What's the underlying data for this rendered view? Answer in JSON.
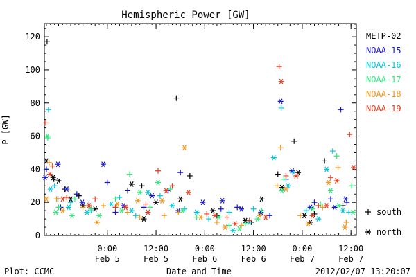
{
  "chart_data": {
    "type": "scatter",
    "title": "Hemispheric Power [GW]",
    "ylabel": "P [GW]",
    "xlabel": "Date and Time",
    "footer_left": "Plot: CCMC",
    "footer_right": "2012/02/07 13:20:07",
    "ylim": [
      0,
      128
    ],
    "xlim": [
      "2012-02-04 08:30",
      "2012-02-07 13:20"
    ],
    "y_ticks": [
      0,
      20,
      40,
      60,
      80,
      100,
      120
    ],
    "x_ticks": [
      {
        "at": "2012-02-05 00:00",
        "time": "0:00",
        "date": "Feb 5"
      },
      {
        "at": "2012-02-05 12:00",
        "time": "12:00",
        "date": "Feb 5"
      },
      {
        "at": "2012-02-06 00:00",
        "time": "0:00",
        "date": "Feb 6"
      },
      {
        "at": "2012-02-06 12:00",
        "time": "12:00",
        "date": "Feb 6"
      },
      {
        "at": "2012-02-07 00:00",
        "time": "0:00",
        "date": "Feb 7"
      },
      {
        "at": "2012-02-07 12:00",
        "time": "12:00",
        "date": "Feb 7"
      }
    ],
    "markers": {
      "south": "+",
      "north": "*"
    },
    "legend_markers": [
      {
        "symbol": "+",
        "label": "south"
      },
      {
        "symbol": "*",
        "label": "north"
      }
    ],
    "series": [
      {
        "name": "METP-02",
        "color": "#000000",
        "south": [
          [
            "2012-02-04 09:10",
            117
          ],
          [
            "2012-02-04 10:50",
            34
          ],
          [
            "2012-02-04 11:50",
            22
          ],
          [
            "2012-02-04 13:30",
            28
          ],
          [
            "2012-02-04 17:00",
            24
          ],
          [
            "2012-02-04 19:30",
            19
          ],
          [
            "2012-02-05 08:30",
            30
          ],
          [
            "2012-02-05 17:00",
            83
          ],
          [
            "2012-02-05 20:20",
            36
          ],
          [
            "2012-02-06 03:00",
            12
          ],
          [
            "2012-02-06 11:30",
            8
          ],
          [
            "2012-02-06 18:00",
            37
          ],
          [
            "2012-02-06 22:00",
            57
          ],
          [
            "2012-02-07 03:00",
            13
          ],
          [
            "2012-02-07 05:30",
            45
          ],
          [
            "2012-02-07 10:00",
            18
          ]
        ],
        "north": [
          [
            "2012-02-04 09:00",
            45
          ],
          [
            "2012-02-04 10:40",
            35
          ],
          [
            "2012-02-04 12:00",
            33
          ],
          [
            "2012-02-04 15:00",
            22
          ],
          [
            "2012-02-04 18:00",
            18
          ],
          [
            "2012-02-04 21:00",
            16
          ],
          [
            "2012-02-05 06:00",
            31
          ],
          [
            "2012-02-05 09:00",
            10
          ],
          [
            "2012-02-05 12:00",
            20
          ],
          [
            "2012-02-05 18:00",
            22
          ],
          [
            "2012-02-06 02:00",
            15
          ],
          [
            "2012-02-06 10:00",
            9
          ],
          [
            "2012-02-06 14:00",
            22
          ],
          [
            "2012-02-06 19:00",
            29
          ],
          [
            "2012-02-06 23:00",
            38
          ],
          [
            "2012-02-07 00:30",
            12
          ],
          [
            "2012-02-07 02:00",
            8
          ]
        ]
      },
      {
        "name": "NOAA-15",
        "color": "#1414d2",
        "south": [
          [
            "2012-02-04 09:00",
            40
          ],
          [
            "2012-02-04 12:30",
            17
          ],
          [
            "2012-02-04 16:30",
            25
          ],
          [
            "2012-02-05 00:00",
            32
          ],
          [
            "2012-02-05 02:00",
            14
          ],
          [
            "2012-02-05 05:00",
            27
          ],
          [
            "2012-02-05 09:00",
            17
          ],
          [
            "2012-02-05 15:00",
            27
          ],
          [
            "2012-02-05 18:00",
            38
          ],
          [
            "2012-02-06 04:00",
            16
          ],
          [
            "2012-02-06 08:00",
            17
          ],
          [
            "2012-02-06 16:00",
            12
          ],
          [
            "2012-02-06 20:00",
            34
          ],
          [
            "2012-02-07 03:00",
            20
          ],
          [
            "2012-02-07 07:00",
            22
          ],
          [
            "2012-02-07 09:30",
            76
          ],
          [
            "2012-02-07 11:00",
            20
          ]
        ],
        "north": [
          [
            "2012-02-04 08:40",
            35
          ],
          [
            "2012-02-04 11:50",
            43
          ],
          [
            "2012-02-04 14:00",
            28
          ],
          [
            "2012-02-04 17:50",
            20
          ],
          [
            "2012-02-04 23:00",
            43
          ],
          [
            "2012-02-05 04:00",
            18
          ],
          [
            "2012-02-05 11:00",
            24
          ],
          [
            "2012-02-05 17:30",
            15
          ],
          [
            "2012-02-05 23:30",
            20
          ],
          [
            "2012-02-06 04:20",
            21
          ],
          [
            "2012-02-06 09:00",
            16
          ],
          [
            "2012-02-06 13:50",
            14
          ],
          [
            "2012-02-06 18:40",
            81
          ],
          [
            "2012-02-06 21:30",
            39
          ],
          [
            "2012-02-07 02:00",
            17
          ],
          [
            "2012-02-07 08:00",
            17
          ],
          [
            "2012-02-07 10:40",
            22
          ]
        ]
      },
      {
        "name": "NOAA-16",
        "color": "#00c8dc",
        "south": [
          [
            "2012-02-04 09:30",
            76
          ],
          [
            "2012-02-04 11:00",
            30
          ],
          [
            "2012-02-04 15:00",
            20
          ],
          [
            "2012-02-04 20:00",
            15
          ],
          [
            "2012-02-05 03:00",
            23
          ],
          [
            "2012-02-05 07:00",
            12
          ],
          [
            "2012-02-05 13:00",
            24
          ],
          [
            "2012-02-05 19:00",
            16
          ],
          [
            "2012-02-06 01:00",
            10
          ],
          [
            "2012-02-06 06:00",
            14
          ],
          [
            "2012-02-06 12:00",
            16
          ],
          [
            "2012-02-06 18:50",
            77
          ],
          [
            "2012-02-06 21:40",
            38
          ],
          [
            "2012-02-07 01:00",
            15
          ],
          [
            "2012-02-07 07:30",
            51
          ],
          [
            "2012-02-07 11:30",
            14
          ]
        ],
        "north": [
          [
            "2012-02-04 10:00",
            28
          ],
          [
            "2012-02-04 14:30",
            17
          ],
          [
            "2012-02-04 19:00",
            14
          ],
          [
            "2012-02-05 01:00",
            19
          ],
          [
            "2012-02-05 06:00",
            15
          ],
          [
            "2012-02-05 10:00",
            26
          ],
          [
            "2012-02-05 16:00",
            18
          ],
          [
            "2012-02-05 22:00",
            14
          ],
          [
            "2012-02-06 07:00",
            3
          ],
          [
            "2012-02-06 11:00",
            8
          ],
          [
            "2012-02-06 17:00",
            47
          ],
          [
            "2012-02-06 20:30",
            30
          ],
          [
            "2012-02-07 04:00",
            10
          ],
          [
            "2012-02-07 06:00",
            40
          ],
          [
            "2012-02-07 10:00",
            15
          ]
        ]
      },
      {
        "name": "NOAA-17",
        "color": "#2ee87a",
        "south": [
          [
            "2012-02-04 09:20",
            59
          ],
          [
            "2012-02-04 12:00",
            17
          ],
          [
            "2012-02-04 16:00",
            22
          ],
          [
            "2012-02-04 20:00",
            16
          ],
          [
            "2012-02-05 02:00",
            22
          ],
          [
            "2012-02-05 05:30",
            37
          ],
          [
            "2012-02-05 10:30",
            17
          ],
          [
            "2012-02-05 15:30",
            28
          ],
          [
            "2012-02-05 22:00",
            11
          ],
          [
            "2012-02-06 06:00",
            6
          ],
          [
            "2012-02-06 10:00",
            7
          ],
          [
            "2012-02-06 14:00",
            15
          ],
          [
            "2012-02-06 19:30",
            34
          ],
          [
            "2012-02-07 04:30",
            19
          ],
          [
            "2012-02-07 08:30",
            48
          ],
          [
            "2012-02-07 12:10",
            30
          ]
        ],
        "north": [
          [
            "2012-02-04 09:15",
            60
          ],
          [
            "2012-02-04 11:20",
            14
          ],
          [
            "2012-02-04 15:20",
            12
          ],
          [
            "2012-02-04 22:00",
            12
          ],
          [
            "2012-02-05 03:30",
            15
          ],
          [
            "2012-02-05 08:00",
            26
          ],
          [
            "2012-02-05 12:30",
            32
          ],
          [
            "2012-02-05 18:30",
            15
          ],
          [
            "2012-02-06 03:30",
            11
          ],
          [
            "2012-02-06 08:30",
            4
          ],
          [
            "2012-02-06 13:00",
            10
          ],
          [
            "2012-02-06 19:00",
            27
          ],
          [
            "2012-02-07 02:30",
            16
          ],
          [
            "2012-02-07 07:00",
            27
          ],
          [
            "2012-02-07 09:00",
            18
          ],
          [
            "2012-02-07 12:30",
            14
          ]
        ]
      },
      {
        "name": "NOAA-18",
        "color": "#f0961e",
        "south": [
          [
            "2012-02-04 09:40",
            44
          ],
          [
            "2012-02-04 11:30",
            22
          ],
          [
            "2012-02-04 18:00",
            17
          ],
          [
            "2012-02-04 23:00",
            18
          ],
          [
            "2012-02-05 05:00",
            14
          ],
          [
            "2012-02-05 08:00",
            11
          ],
          [
            "2012-02-05 14:00",
            12
          ],
          [
            "2012-02-05 17:30",
            14
          ],
          [
            "2012-02-06 03:00",
            8
          ],
          [
            "2012-02-06 09:00",
            6
          ],
          [
            "2012-02-06 17:50",
            30
          ],
          [
            "2012-02-06 18:40",
            53
          ],
          [
            "2012-02-06 23:30",
            12
          ],
          [
            "2012-02-07 05:00",
            17
          ],
          [
            "2012-02-07 08:50",
            41
          ],
          [
            "2012-02-07 10:50",
            8
          ]
        ],
        "north": [
          [
            "2012-02-04 09:00",
            22
          ],
          [
            "2012-02-04 13:00",
            15
          ],
          [
            "2012-02-04 21:30",
            8
          ],
          [
            "2012-02-05 02:30",
            19
          ],
          [
            "2012-02-05 07:30",
            21
          ],
          [
            "2012-02-05 13:30",
            21
          ],
          [
            "2012-02-05 19:00",
            53
          ],
          [
            "2012-02-05 23:00",
            11
          ],
          [
            "2012-02-06 05:00",
            5
          ],
          [
            "2012-02-06 13:30",
            12
          ],
          [
            "2012-02-06 20:00",
            28
          ],
          [
            "2012-02-07 01:30",
            7
          ],
          [
            "2012-02-07 06:30",
            32
          ],
          [
            "2012-02-07 10:30",
            5
          ]
        ]
      },
      {
        "name": "NOAA-19",
        "color": "#e63c1e",
        "south": [
          [
            "2012-02-04 08:50",
            68
          ],
          [
            "2012-02-04 10:30",
            42
          ],
          [
            "2012-02-04 14:00",
            23
          ],
          [
            "2012-02-04 21:00",
            22
          ],
          [
            "2012-02-05 02:00",
            17
          ],
          [
            "2012-02-05 09:30",
            19
          ],
          [
            "2012-02-05 12:30",
            39
          ],
          [
            "2012-02-05 16:00",
            30
          ],
          [
            "2012-02-06 00:30",
            13
          ],
          [
            "2012-02-06 05:30",
            11
          ],
          [
            "2012-02-06 11:00",
            9
          ],
          [
            "2012-02-06 18:20",
            102
          ],
          [
            "2012-02-06 20:00",
            36
          ],
          [
            "2012-02-07 04:00",
            18
          ],
          [
            "2012-02-07 07:00",
            35
          ],
          [
            "2012-02-07 11:40",
            61
          ]
        ],
        "north": [
          [
            "2012-02-04 09:50",
            37
          ],
          [
            "2012-02-04 13:00",
            22
          ],
          [
            "2012-02-04 19:30",
            18
          ],
          [
            "2012-02-05 04:30",
            17
          ],
          [
            "2012-02-05 10:00",
            14
          ],
          [
            "2012-02-05 14:30",
            27
          ],
          [
            "2012-02-05 20:00",
            26
          ],
          [
            "2012-02-06 02:30",
            12
          ],
          [
            "2012-02-06 07:30",
            7
          ],
          [
            "2012-02-06 15:00",
            11
          ],
          [
            "2012-02-06 18:50",
            93
          ],
          [
            "2012-02-06 22:30",
            36
          ],
          [
            "2012-02-07 02:30",
            12
          ],
          [
            "2012-02-07 06:00",
            18
          ],
          [
            "2012-02-07 08:30",
            33
          ],
          [
            "2012-02-07 12:40",
            41
          ]
        ]
      }
    ]
  }
}
